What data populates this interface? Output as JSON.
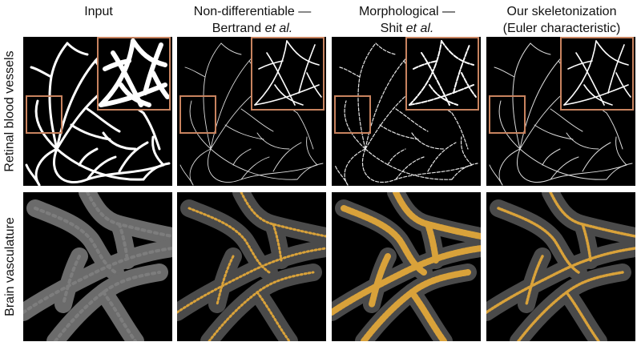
{
  "columns": [
    {
      "line1": "Input",
      "line2": "",
      "line2_italic": ""
    },
    {
      "line1": "Non-differentiable —",
      "line2": "Bertrand ",
      "line2_italic": "et al."
    },
    {
      "line1": "Morphological —",
      "line2": "Shit ",
      "line2_italic": "et al."
    },
    {
      "line1": "Our skeletonization",
      "line2": "(Euler characteristic)",
      "line2_italic": ""
    }
  ],
  "rows": [
    {
      "label": "Retinal blood vessels"
    },
    {
      "label": "Brain vasculature"
    }
  ],
  "colors": {
    "background": "#000000",
    "vessel": "#ffffff",
    "inset_border": "#c8835f",
    "brain_gray": "#6b6b6b",
    "skeleton": "#d9a23a"
  },
  "panels": [
    {
      "row": "retina",
      "method": "input"
    },
    {
      "row": "retina",
      "method": "bertrand"
    },
    {
      "row": "retina",
      "method": "shit"
    },
    {
      "row": "retina",
      "method": "euler"
    },
    {
      "row": "brain",
      "method": "input"
    },
    {
      "row": "brain",
      "method": "bertrand"
    },
    {
      "row": "brain",
      "method": "shit"
    },
    {
      "row": "brain",
      "method": "euler"
    }
  ]
}
